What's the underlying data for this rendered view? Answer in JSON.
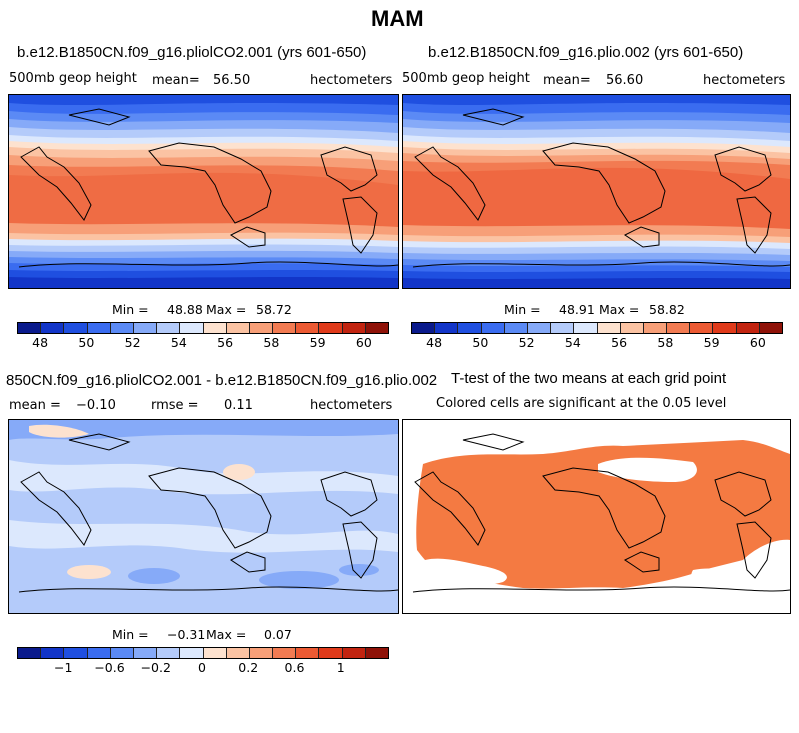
{
  "title": "MAM",
  "panels": {
    "top_left": {
      "title": "b.e12.B1850CN.f09_g16.pliolCO2.001 (yrs 601-650)",
      "variable": "500mb geop height",
      "mean_label": "mean=",
      "mean_value": "56.50",
      "units": "hectometers",
      "min_label": "Min =",
      "min_value": "48.88",
      "max_label": "Max =",
      "max_value": "58.72"
    },
    "top_right": {
      "title": "b.e12.B1850CN.f09_g16.plio.002 (yrs 601-650)",
      "variable": "500mb geop height",
      "mean_label": "mean=",
      "mean_value": "56.60",
      "units": "hectometers",
      "min_label": "Min =",
      "min_value": "48.91",
      "max_label": "Max =",
      "max_value": "58.82"
    },
    "bottom_left": {
      "title": "850CN.f09_g16.pliolCO2.001 - b.e12.B1850CN.f09_g16.plio.002",
      "mean_label": "mean =",
      "mean_value": "-0.10",
      "rmse_label": "rmse =",
      "rmse_value": "0.11",
      "units": "hectometers",
      "min_label": "Min =",
      "min_value": "-0.31",
      "max_label": "Max =",
      "max_value": "0.07"
    },
    "bottom_right": {
      "title": "T-test of the two means at each grid point",
      "subtitle": "Colored cells are significant at the 0.05 level"
    }
  },
  "colorbar_top": {
    "colors": [
      "#0a1a8c",
      "#1235c8",
      "#1f4fe0",
      "#3a6cf0",
      "#5b8af5",
      "#86aaf8",
      "#b4cbfa",
      "#dce8fd",
      "#fde2cf",
      "#fbc3a3",
      "#f79f78",
      "#f27b52",
      "#ec5a33",
      "#e03a1a",
      "#c22410",
      "#8f1208"
    ],
    "ticks": [
      "48",
      "50",
      "52",
      "54",
      "56",
      "58",
      "59",
      "60"
    ]
  },
  "colorbar_diff": {
    "colors": [
      "#0a1a8c",
      "#1235c8",
      "#1f4fe0",
      "#3a6cf0",
      "#5b8af5",
      "#86aaf8",
      "#b4cbfa",
      "#dce8fd",
      "#fde2cf",
      "#fbc3a3",
      "#f79f78",
      "#f27b52",
      "#ec5a33",
      "#e03a1a",
      "#c22410",
      "#8f1208"
    ],
    "ticks": [
      "-1",
      "-0.6",
      "-0.2",
      "0",
      "0.2",
      "0.6",
      "1"
    ]
  }
}
